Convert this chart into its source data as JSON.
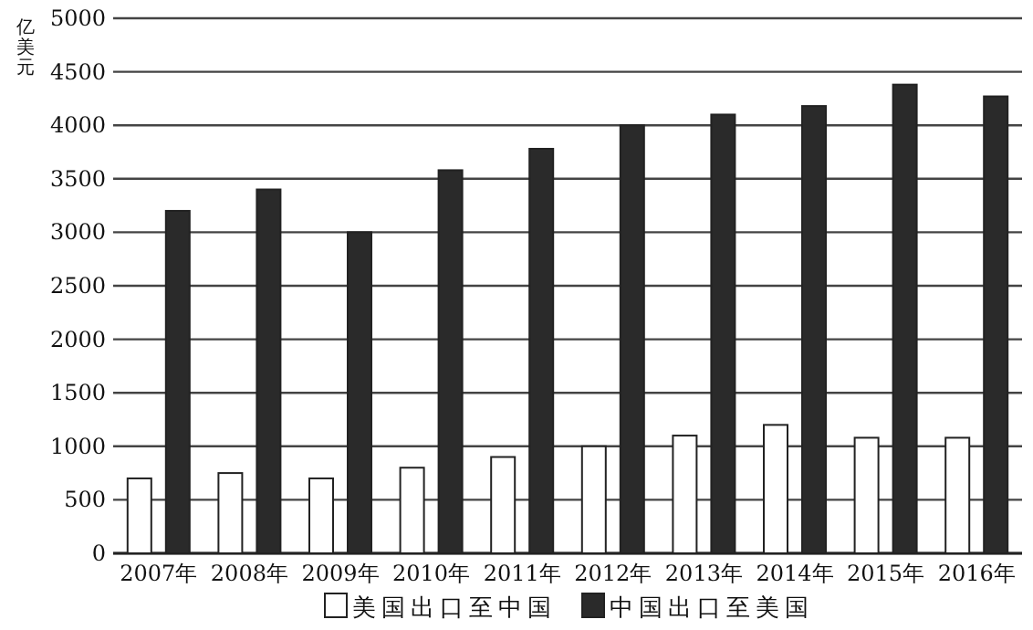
{
  "chart_data": {
    "type": "bar",
    "ylabel": "亿美元",
    "categories": [
      "2007年",
      "2008年",
      "2009年",
      "2010年",
      "2011年",
      "2012年",
      "2013年",
      "2014年",
      "2015年",
      "2016年"
    ],
    "series": [
      {
        "name": "美国出口至中国",
        "color": "#ffffff",
        "values": [
          700,
          750,
          700,
          800,
          900,
          1000,
          1100,
          1200,
          1080,
          1080
        ]
      },
      {
        "name": "中国出口至美国",
        "color": "#2a2a2a",
        "values": [
          3200,
          3400,
          3000,
          3580,
          3780,
          4000,
          4100,
          4180,
          4380,
          4270
        ]
      }
    ],
    "ylim": [
      0,
      5000
    ],
    "yticks": [
      0,
      500,
      1000,
      1500,
      2000,
      2500,
      3000,
      3500,
      4000,
      4500,
      5000
    ],
    "grid": "y",
    "legend": "bottom"
  }
}
